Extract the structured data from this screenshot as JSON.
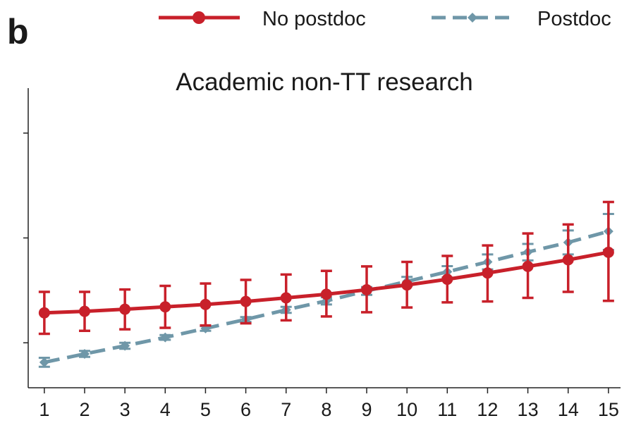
{
  "panel_label": "b",
  "chart_data": {
    "type": "line",
    "title": "Academic non-TT research",
    "xlabel": "",
    "ylabel": "",
    "x": [
      1,
      2,
      3,
      4,
      5,
      6,
      7,
      8,
      9,
      10,
      11,
      12,
      13,
      14,
      15
    ],
    "xlim": [
      0.6,
      15.3
    ],
    "ylim": [
      0.0,
      1.0
    ],
    "yticks": [
      0.15,
      0.5,
      0.85
    ],
    "ytick_labels_shown": false,
    "grid": false,
    "legend_position": "top",
    "series": [
      {
        "name": "No postdoc",
        "color": "#c8202a",
        "line_style": "solid",
        "marker": "circle",
        "values": [
          0.25,
          0.255,
          0.262,
          0.27,
          0.278,
          0.288,
          0.3,
          0.312,
          0.327,
          0.343,
          0.362,
          0.383,
          0.405,
          0.427,
          0.452
        ],
        "ci_low": [
          0.18,
          0.19,
          0.195,
          0.2,
          0.208,
          0.215,
          0.225,
          0.238,
          0.252,
          0.268,
          0.285,
          0.288,
          0.3,
          0.32,
          0.29
        ],
        "ci_high": [
          0.32,
          0.32,
          0.328,
          0.34,
          0.348,
          0.36,
          0.378,
          0.39,
          0.405,
          0.42,
          0.44,
          0.475,
          0.515,
          0.545,
          0.62
        ]
      },
      {
        "name": "Postdoc",
        "color": "#6f97a8",
        "line_style": "dashed",
        "marker": "diamond",
        "values": [
          0.085,
          0.113,
          0.14,
          0.168,
          0.198,
          0.228,
          0.26,
          0.29,
          0.323,
          0.355,
          0.387,
          0.42,
          0.453,
          0.485,
          0.522
        ],
        "ci_low": [
          0.07,
          0.103,
          0.13,
          0.16,
          0.19,
          0.22,
          0.25,
          0.278,
          0.31,
          0.34,
          0.368,
          0.395,
          0.425,
          0.445,
          0.46
        ],
        "ci_high": [
          0.1,
          0.123,
          0.15,
          0.176,
          0.206,
          0.236,
          0.27,
          0.302,
          0.336,
          0.37,
          0.406,
          0.445,
          0.48,
          0.525,
          0.58
        ]
      }
    ]
  }
}
